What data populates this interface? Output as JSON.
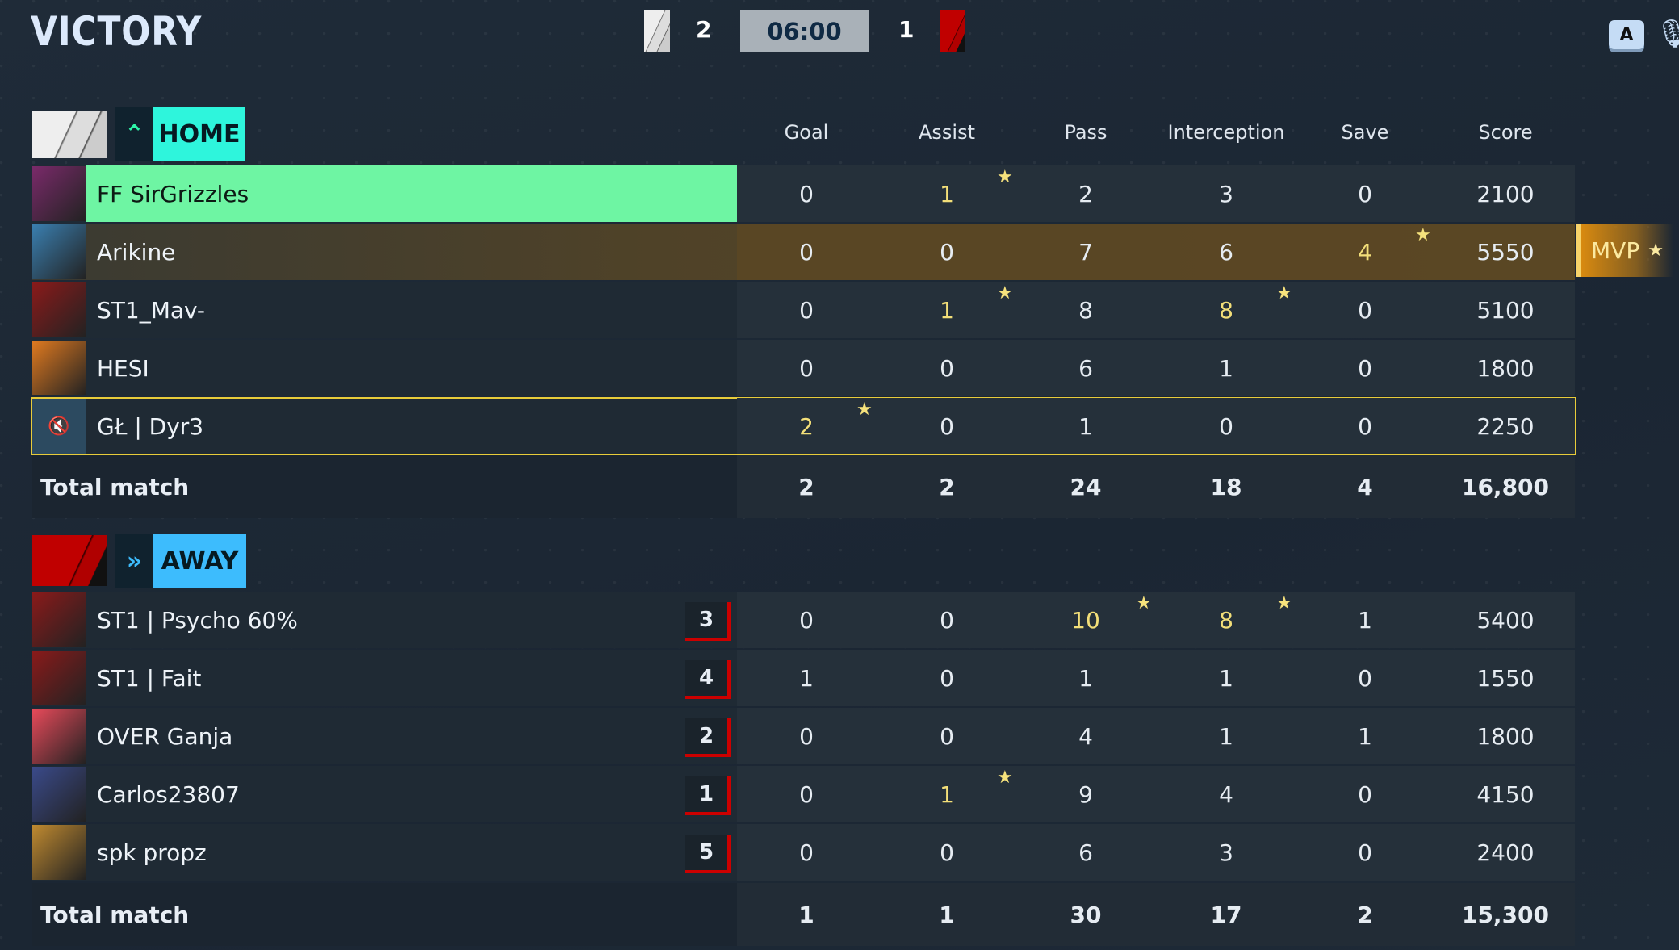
{
  "header": {
    "result": "VICTORY",
    "home_score": "2",
    "timer": "06:00",
    "away_score": "1",
    "key_hint": "A"
  },
  "colors": {
    "home": "#2ef5dc",
    "away": "#3dbcfd",
    "highlight_player": "#6ef5a3",
    "mvp": "#d88a10",
    "stat_highlight": "#f3df79"
  },
  "columns": [
    "Goal",
    "Assist",
    "Pass",
    "Interception",
    "Save",
    "Score"
  ],
  "home": {
    "label": "HOME",
    "icon": "chevron-up-icon",
    "players": [
      {
        "name": "FF SirGrizzles",
        "stats": [
          "0",
          "1",
          "2",
          "3",
          "0",
          "2100"
        ],
        "stars": [
          1
        ],
        "self": true
      },
      {
        "name": "Arikine",
        "stats": [
          "0",
          "0",
          "7",
          "6",
          "4",
          "5550"
        ],
        "stars": [
          4
        ],
        "mvp": true
      },
      {
        "name": "ST1_Mav-",
        "stats": [
          "0",
          "1",
          "8",
          "8",
          "0",
          "5100"
        ],
        "stars": [
          1,
          3
        ]
      },
      {
        "name": "HESI",
        "stats": [
          "0",
          "0",
          "6",
          "1",
          "0",
          "1800"
        ],
        "stars": []
      },
      {
        "name": "GŁ | Dyr3",
        "stats": [
          "2",
          "0",
          "1",
          "0",
          "0",
          "2250"
        ],
        "stars": [
          0
        ],
        "selected": true,
        "muted": true
      }
    ],
    "total_label": "Total match",
    "totals": [
      "2",
      "2",
      "24",
      "18",
      "4",
      "16,800"
    ]
  },
  "away": {
    "label": "AWAY",
    "icon": "double-chevron-right-icon",
    "players": [
      {
        "name": "ST1 | Psycho 60%",
        "rank": "3",
        "stats": [
          "0",
          "0",
          "10",
          "8",
          "1",
          "5400"
        ],
        "stars": [
          2,
          3
        ]
      },
      {
        "name": "ST1 | Fait",
        "rank": "4",
        "stats": [
          "1",
          "0",
          "1",
          "1",
          "0",
          "1550"
        ],
        "stars": []
      },
      {
        "name": "OVER Ganja",
        "rank": "2",
        "stats": [
          "0",
          "0",
          "4",
          "1",
          "1",
          "1800"
        ],
        "stars": []
      },
      {
        "name": "Carlos23807",
        "rank": "1",
        "stats": [
          "0",
          "1",
          "9",
          "4",
          "0",
          "4150"
        ],
        "stars": [
          1
        ]
      },
      {
        "name": "spk propz",
        "rank": "5",
        "stats": [
          "0",
          "0",
          "6",
          "3",
          "0",
          "2400"
        ],
        "stars": []
      }
    ],
    "total_label": "Total match",
    "totals": [
      "1",
      "1",
      "30",
      "17",
      "2",
      "15,300"
    ]
  },
  "mvp_label": "MVP"
}
